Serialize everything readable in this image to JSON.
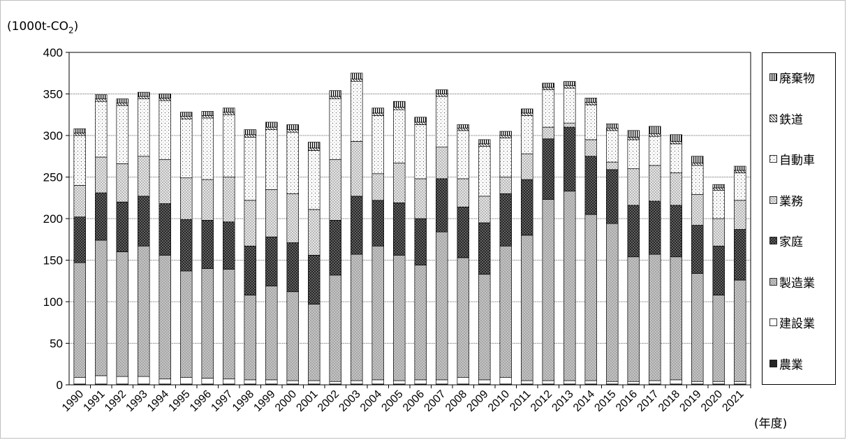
{
  "unit_label": "(1000t-CO",
  "unit_sub": "2",
  "unit_close": ")",
  "xunit_label": "(年度)",
  "chart_data": {
    "type": "bar",
    "stacked": true,
    "ylim": [
      0,
      400
    ],
    "yticks": [
      0,
      50,
      100,
      150,
      200,
      250,
      300,
      350,
      400
    ],
    "grid": true,
    "legend_position": "right",
    "categories": [
      "1990",
      "1991",
      "1992",
      "1993",
      "1994",
      "1995",
      "1996",
      "1997",
      "1998",
      "1999",
      "2000",
      "2001",
      "2002",
      "2003",
      "2004",
      "2005",
      "2006",
      "2007",
      "2008",
      "2009",
      "2010",
      "2011",
      "2012",
      "2013",
      "2014",
      "2015",
      "2016",
      "2017",
      "2018",
      "2019",
      "2020",
      "2021"
    ],
    "series": [
      {
        "name": "農業",
        "pattern": "black",
        "values": [
          1,
          1,
          1,
          1,
          1,
          1,
          1,
          1,
          1,
          1,
          1,
          1,
          1,
          1,
          1,
          1,
          1,
          1,
          1,
          1,
          1,
          1,
          1,
          1,
          1,
          1,
          1,
          1,
          1,
          1,
          1,
          1
        ]
      },
      {
        "name": "建設業",
        "pattern": "white",
        "values": [
          8,
          10,
          9,
          9,
          6,
          8,
          7,
          6,
          5,
          5,
          4,
          4,
          3,
          4,
          5,
          4,
          5,
          5,
          8,
          5,
          8,
          4,
          4,
          4,
          4,
          3,
          3,
          4,
          5,
          3,
          3,
          3
        ]
      },
      {
        "name": "製造業",
        "pattern": "gray",
        "values": [
          138,
          163,
          150,
          157,
          149,
          128,
          132,
          132,
          102,
          113,
          107,
          92,
          128,
          152,
          161,
          151,
          138,
          178,
          144,
          127,
          158,
          175,
          218,
          228,
          200,
          190,
          150,
          152,
          148,
          130,
          104,
          122
        ]
      },
      {
        "name": "家庭",
        "pattern": "dark",
        "values": [
          55,
          57,
          60,
          60,
          62,
          62,
          58,
          57,
          59,
          59,
          59,
          59,
          66,
          70,
          55,
          63,
          56,
          64,
          61,
          62,
          63,
          67,
          73,
          77,
          70,
          65,
          62,
          64,
          62,
          58,
          59,
          61
        ]
      },
      {
        "name": "業務",
        "pattern": "light",
        "values": [
          38,
          43,
          46,
          48,
          53,
          50,
          49,
          54,
          55,
          57,
          59,
          55,
          73,
          66,
          32,
          48,
          48,
          38,
          34,
          32,
          20,
          31,
          14,
          5,
          20,
          9,
          44,
          43,
          39,
          37,
          33,
          35
        ]
      },
      {
        "name": "自動車",
        "pattern": "dots",
        "values": [
          60,
          67,
          70,
          69,
          71,
          71,
          74,
          75,
          76,
          72,
          74,
          71,
          73,
          72,
          70,
          64,
          65,
          61,
          58,
          60,
          47,
          46,
          45,
          42,
          42,
          38,
          35,
          35,
          35,
          35,
          34,
          33
        ]
      },
      {
        "name": "鉄道",
        "pattern": "hatch",
        "values": [
          3,
          3,
          3,
          3,
          3,
          3,
          3,
          3,
          3,
          3,
          3,
          3,
          3,
          3,
          3,
          3,
          3,
          3,
          3,
          3,
          3,
          3,
          3,
          3,
          3,
          3,
          3,
          3,
          3,
          3,
          3,
          3
        ]
      },
      {
        "name": "廃棄物",
        "pattern": "vstripes",
        "values": [
          5,
          5,
          5,
          5,
          5,
          5,
          5,
          5,
          6,
          6,
          6,
          7,
          7,
          7,
          6,
          7,
          6,
          5,
          4,
          5,
          5,
          5,
          5,
          5,
          5,
          5,
          8,
          9,
          8,
          8,
          4,
          5
        ]
      }
    ]
  }
}
